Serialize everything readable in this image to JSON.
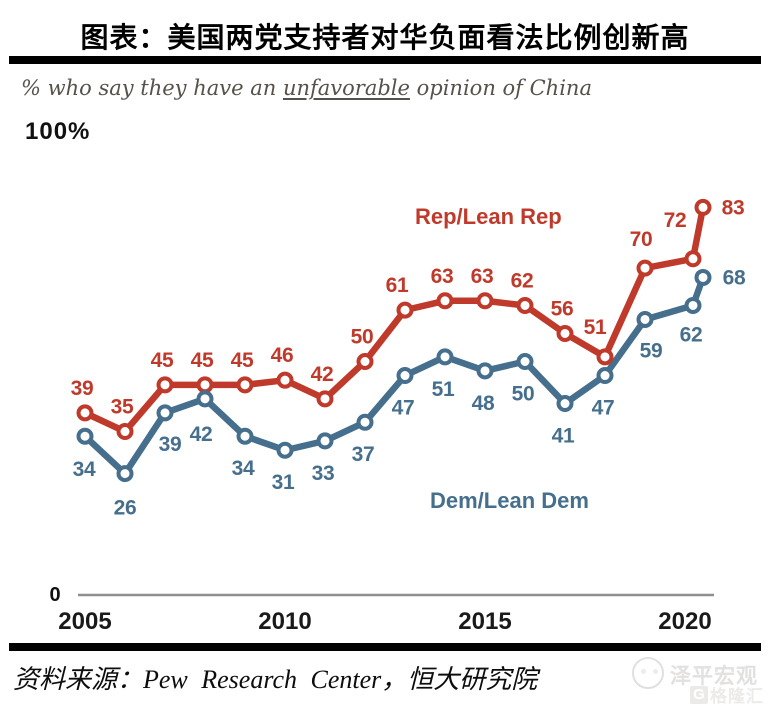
{
  "header": {
    "title": "图表：美国两党支持者对华负面看法比例创新高"
  },
  "subtitle": {
    "prefix": "% who say they have an ",
    "underlined": "unfavorable",
    "suffix": " opinion of China"
  },
  "chart_data": {
    "type": "line",
    "title": "% who say they have an unfavorable opinion of China",
    "x": [
      2005,
      2006,
      2007,
      2008,
      2009,
      2010,
      2011,
      2012,
      2013,
      2014,
      2015,
      2016,
      2017,
      2018,
      2019,
      2020.2,
      2020.45
    ],
    "x_tick_labels": [
      "2005",
      "2010",
      "2015",
      "2020"
    ],
    "xlabel": "",
    "ylabel": "",
    "ylim": [
      0,
      100
    ],
    "grid": false,
    "y_top_label": "100%",
    "y_bottom_label": "0",
    "legend_position": "inline",
    "axis_color": "#8f8f8f",
    "series": [
      {
        "name": "Rep/Lean Rep",
        "color": "#c03a2b",
        "values": [
          39,
          35,
          45,
          45,
          45,
          46,
          42,
          50,
          61,
          63,
          63,
          62,
          56,
          51,
          70,
          72,
          83
        ]
      },
      {
        "name": "Dem/Lean Dem",
        "color": "#466f8d",
        "values": [
          34,
          26,
          39,
          42,
          34,
          31,
          33,
          37,
          47,
          51,
          48,
          50,
          41,
          47,
          59,
          62,
          68
        ]
      }
    ]
  },
  "footer": {
    "source": "资料来源：Pew Research Center，恒大研究院"
  },
  "watermark": {
    "brand": "泽平宏观",
    "logo_letter": "G",
    "logo2": "格隆汇"
  }
}
